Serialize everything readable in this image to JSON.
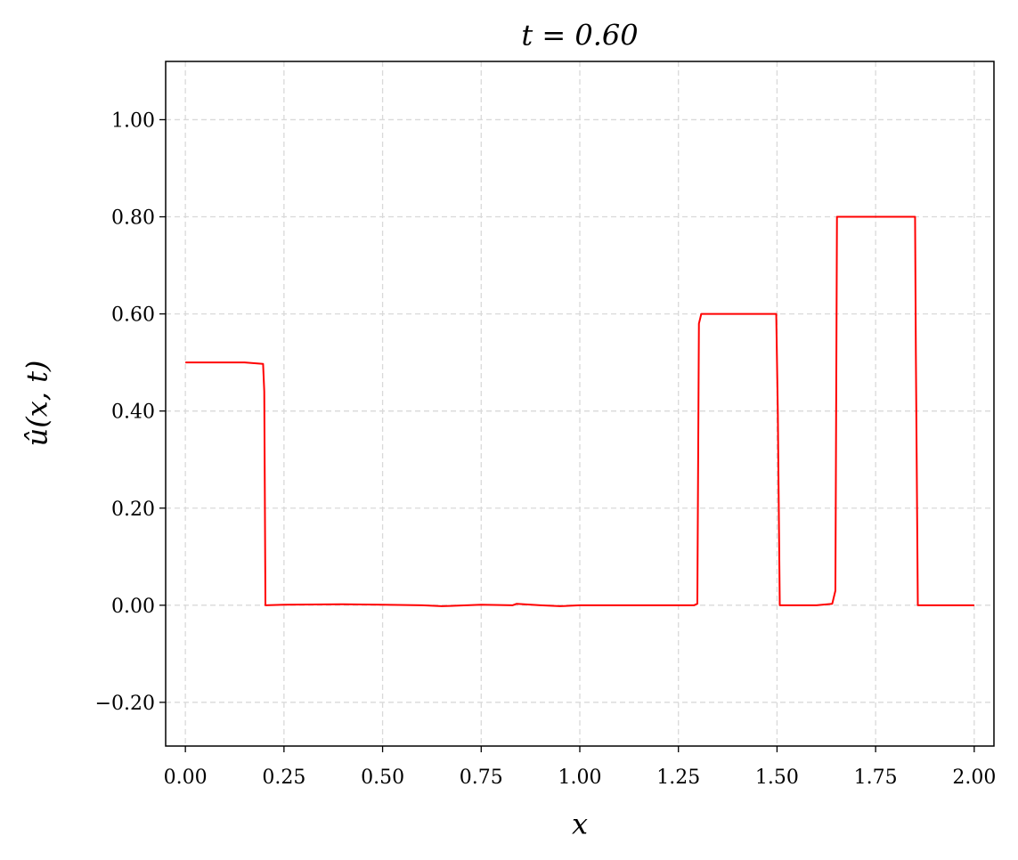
{
  "chart_data": {
    "type": "line",
    "title": "t = 0.60",
    "x_label": "x",
    "y_label": "û(x, t)",
    "x": [
      0,
      0.05,
      0.1,
      0.15,
      0.197,
      0.2,
      0.203,
      0.25,
      0.4,
      0.5,
      0.6,
      0.65,
      0.75,
      0.83,
      0.84,
      0.9,
      0.95,
      1.0,
      1.29,
      1.298,
      1.302,
      1.308,
      1.35,
      1.45,
      1.498,
      1.502,
      1.507,
      1.6,
      1.64,
      1.648,
      1.652,
      1.66,
      1.75,
      1.85,
      1.852,
      1.857,
      1.95,
      2.0
    ],
    "series": [
      {
        "name": "û",
        "color": "#ff0000",
        "values": [
          0.5,
          0.5,
          0.5,
          0.5,
          0.497,
          0.44,
          0,
          0.001,
          0.002,
          0.001,
          0,
          -0.002,
          0.001,
          0,
          0.003,
          0,
          -0.002,
          0,
          0,
          0.003,
          0.58,
          0.6,
          0.6,
          0.6,
          0.6,
          0.4,
          0,
          0,
          0.003,
          0.03,
          0.8,
          0.8,
          0.8,
          0.8,
          0.52,
          0,
          0,
          0
        ]
      }
    ],
    "xlim": [
      -0.05,
      2.05
    ],
    "ylim": [
      -0.29,
      1.12
    ],
    "xticks": [
      {
        "value": 0,
        "label": "0.00"
      },
      {
        "value": 0.25,
        "label": "0.25"
      },
      {
        "value": 0.5,
        "label": "0.50"
      },
      {
        "value": 0.75,
        "label": "0.75"
      },
      {
        "value": 1,
        "label": "1.00"
      },
      {
        "value": 1.25,
        "label": "1.25"
      },
      {
        "value": 1.5,
        "label": "1.50"
      },
      {
        "value": 1.75,
        "label": "1.75"
      },
      {
        "value": 2,
        "label": "2.00"
      }
    ],
    "yticks": [
      {
        "value": -0.2,
        "label": "−0.20"
      },
      {
        "value": 0,
        "label": "0.00"
      },
      {
        "value": 0.2,
        "label": "0.20"
      },
      {
        "value": 0.4,
        "label": "0.40"
      },
      {
        "value": 0.6,
        "label": "0.60"
      },
      {
        "value": 0.8,
        "label": "0.80"
      },
      {
        "value": 1,
        "label": "1.00"
      }
    ],
    "grid": true
  }
}
